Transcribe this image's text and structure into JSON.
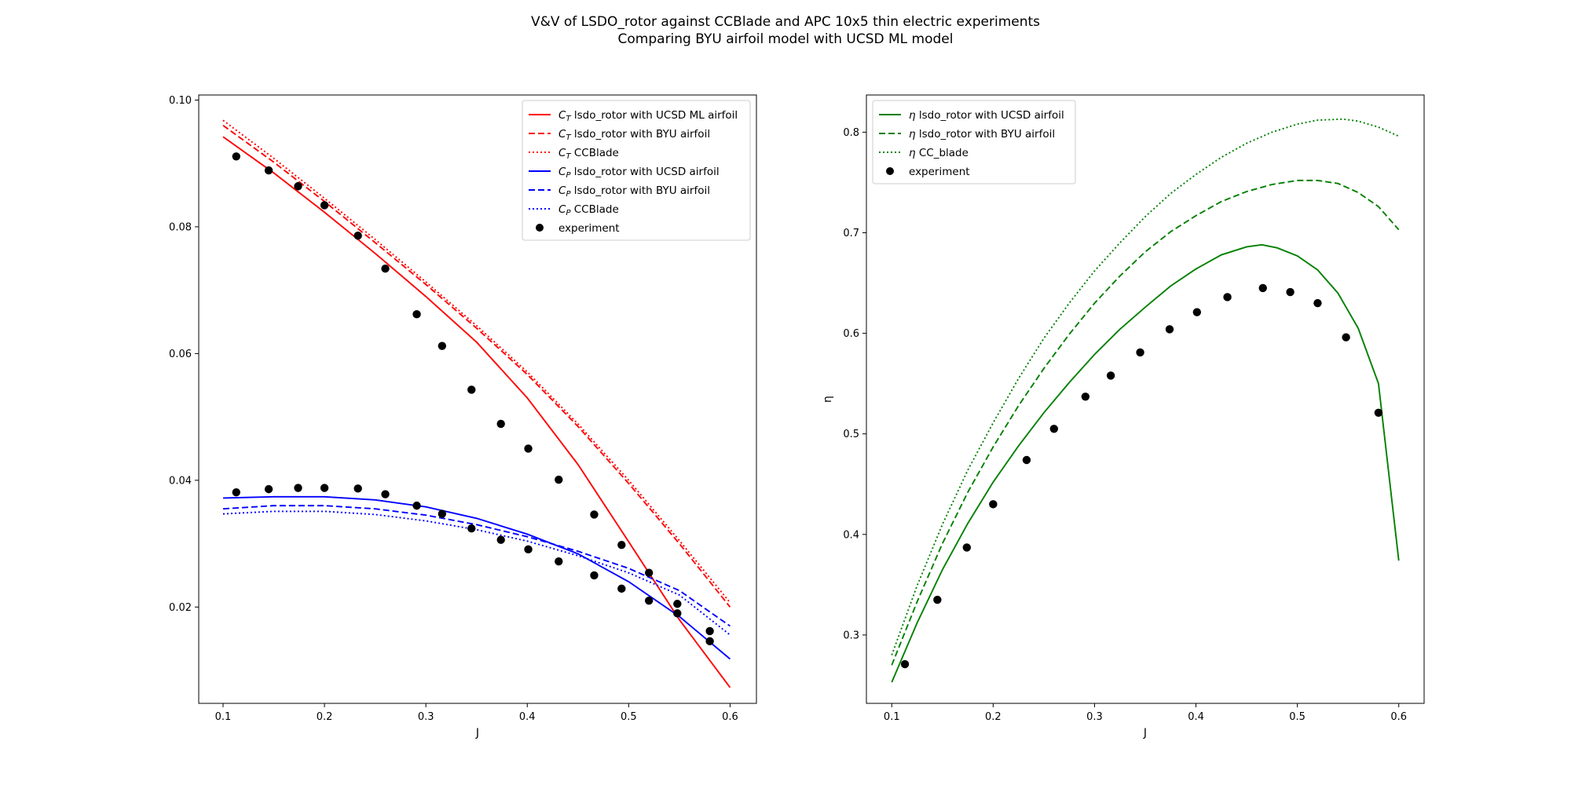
{
  "figure": {
    "title_line1": "V&V of LSDO_rotor against CCBlade and APC 10x5 thin electric experiments",
    "title_line2": "Comparing BYU airfoil model with UCSD ML model"
  },
  "chart_data": [
    {
      "type": "line",
      "xlabel": "J",
      "ylabel": "",
      "xlim": [
        0.076,
        0.626
      ],
      "ylim": [
        0.0048,
        0.1008
      ],
      "xticks": [
        0.1,
        0.2,
        0.3,
        0.4,
        0.5,
        0.6
      ],
      "xtick_labels": [
        "0.1",
        "0.2",
        "0.3",
        "0.4",
        "0.5",
        "0.6"
      ],
      "yticks": [
        0.02,
        0.04,
        0.06,
        0.08,
        0.1
      ],
      "ytick_labels": [
        "0.02",
        "0.04",
        "0.06",
        "0.08",
        "0.10"
      ],
      "grid": false,
      "legend_position": "top-right",
      "series": [
        {
          "sym": "C",
          "sub": "T",
          "text": " lsdo_rotor with UCSD ML airfoil",
          "color": "#ff0000",
          "style": "solid",
          "x": [
            0.1,
            0.15,
            0.2,
            0.25,
            0.3,
            0.35,
            0.4,
            0.45,
            0.5,
            0.55,
            0.6
          ],
          "y": [
            0.0942,
            0.0885,
            0.0823,
            0.0758,
            0.069,
            0.0618,
            0.053,
            0.0425,
            0.0303,
            0.018,
            0.0073
          ]
        },
        {
          "sym": "C",
          "sub": "T",
          "text": " lsdo_rotor with BYU airfoil",
          "color": "#ff0000",
          "style": "dashed",
          "x": [
            0.1,
            0.15,
            0.2,
            0.25,
            0.3,
            0.35,
            0.4,
            0.45,
            0.5,
            0.55,
            0.6
          ],
          "y": [
            0.096,
            0.0902,
            0.084,
            0.0775,
            0.0709,
            0.064,
            0.0567,
            0.0485,
            0.0395,
            0.03,
            0.02
          ]
        },
        {
          "sym": "C",
          "sub": "T",
          "text": " CCBlade",
          "color": "#ff0000",
          "style": "dotted",
          "x": [
            0.1,
            0.15,
            0.2,
            0.25,
            0.3,
            0.35,
            0.4,
            0.45,
            0.5,
            0.55,
            0.6
          ],
          "y": [
            0.0968,
            0.0908,
            0.0845,
            0.078,
            0.0713,
            0.0644,
            0.0571,
            0.0489,
            0.04,
            0.0305,
            0.0207
          ]
        },
        {
          "sym": "C",
          "sub": "P",
          "text": " lsdo_rotor with UCSD airfoil",
          "color": "#0000ff",
          "style": "solid",
          "x": [
            0.1,
            0.15,
            0.2,
            0.25,
            0.3,
            0.35,
            0.4,
            0.45,
            0.5,
            0.55,
            0.6
          ],
          "y": [
            0.0372,
            0.0374,
            0.0374,
            0.0369,
            0.0358,
            0.034,
            0.0315,
            0.0284,
            0.024,
            0.0185,
            0.0118
          ]
        },
        {
          "sym": "C",
          "sub": "P",
          "text": " lsdo_rotor with BYU airfoil",
          "color": "#0000ff",
          "style": "dashed",
          "x": [
            0.1,
            0.15,
            0.2,
            0.25,
            0.3,
            0.35,
            0.4,
            0.45,
            0.5,
            0.55,
            0.6
          ],
          "y": [
            0.0355,
            0.036,
            0.036,
            0.0355,
            0.0345,
            0.033,
            0.0311,
            0.0288,
            0.0261,
            0.0226,
            0.017
          ]
        },
        {
          "sym": "C",
          "sub": "P",
          "text": " CCBlade",
          "color": "#0000ff",
          "style": "dotted",
          "x": [
            0.1,
            0.15,
            0.2,
            0.25,
            0.3,
            0.35,
            0.4,
            0.45,
            0.5,
            0.55,
            0.6
          ],
          "y": [
            0.0347,
            0.0351,
            0.0351,
            0.0346,
            0.0336,
            0.0322,
            0.0304,
            0.0281,
            0.0254,
            0.0219,
            0.0156
          ]
        },
        {
          "sym": "",
          "sub": "",
          "text": "experiment",
          "color": "#000000",
          "style": "markers",
          "x": [
            0.113,
            0.145,
            0.174,
            0.2,
            0.233,
            0.26,
            0.291,
            0.316,
            0.345,
            0.374,
            0.401,
            0.431,
            0.466,
            0.493,
            0.52,
            0.548,
            0.58,
            0.113,
            0.145,
            0.174,
            0.2,
            0.233,
            0.26,
            0.291,
            0.316,
            0.345,
            0.374,
            0.401,
            0.431,
            0.466,
            0.493,
            0.52,
            0.548,
            0.58
          ],
          "y": [
            0.0911,
            0.0889,
            0.0864,
            0.0834,
            0.0786,
            0.0734,
            0.0662,
            0.0612,
            0.0543,
            0.0489,
            0.045,
            0.0401,
            0.0346,
            0.0298,
            0.0254,
            0.0205,
            0.0162,
            0.0381,
            0.0386,
            0.0388,
            0.0388,
            0.0387,
            0.0378,
            0.036,
            0.0347,
            0.0324,
            0.0306,
            0.0291,
            0.0272,
            0.025,
            0.0229,
            0.021,
            0.019,
            0.0146
          ]
        }
      ]
    },
    {
      "type": "line",
      "xlabel": "J",
      "ylabel": "η",
      "xlim": [
        0.075,
        0.625
      ],
      "ylim": [
        0.232,
        0.837
      ],
      "xticks": [
        0.1,
        0.2,
        0.3,
        0.4,
        0.5,
        0.6
      ],
      "xtick_labels": [
        "0.1",
        "0.2",
        "0.3",
        "0.4",
        "0.5",
        "0.6"
      ],
      "yticks": [
        0.3,
        0.4,
        0.5,
        0.6,
        0.7,
        0.8
      ],
      "ytick_labels": [
        "0.3",
        "0.4",
        "0.5",
        "0.6",
        "0.7",
        "0.8"
      ],
      "grid": false,
      "legend_position": "top-left",
      "series": [
        {
          "sym": "η",
          "sub": "",
          "text": " lsdo_rotor with UCSD airfoil",
          "color": "#008000",
          "style": "solid",
          "x": [
            0.1,
            0.125,
            0.15,
            0.175,
            0.2,
            0.225,
            0.25,
            0.275,
            0.3,
            0.325,
            0.35,
            0.375,
            0.4,
            0.425,
            0.45,
            0.465,
            0.48,
            0.5,
            0.52,
            0.54,
            0.56,
            0.58,
            0.6
          ],
          "y": [
            0.253,
            0.312,
            0.365,
            0.411,
            0.452,
            0.488,
            0.521,
            0.551,
            0.579,
            0.604,
            0.626,
            0.647,
            0.664,
            0.678,
            0.686,
            0.688,
            0.685,
            0.677,
            0.663,
            0.64,
            0.605,
            0.55,
            0.374
          ]
        },
        {
          "sym": "η",
          "sub": "",
          "text": " lsdo_rotor with BYU airfoil",
          "color": "#008000",
          "style": "dashed",
          "x": [
            0.1,
            0.125,
            0.15,
            0.175,
            0.2,
            0.225,
            0.25,
            0.275,
            0.3,
            0.325,
            0.35,
            0.375,
            0.4,
            0.425,
            0.45,
            0.475,
            0.5,
            0.52,
            0.54,
            0.56,
            0.58,
            0.6
          ],
          "y": [
            0.27,
            0.333,
            0.391,
            0.442,
            0.487,
            0.528,
            0.565,
            0.599,
            0.63,
            0.657,
            0.681,
            0.701,
            0.717,
            0.731,
            0.741,
            0.748,
            0.752,
            0.752,
            0.749,
            0.74,
            0.726,
            0.703
          ]
        },
        {
          "sym": "η",
          "sub": "",
          "text": " CC_blade",
          "color": "#008000",
          "style": "dotted",
          "x": [
            0.1,
            0.125,
            0.15,
            0.175,
            0.2,
            0.225,
            0.25,
            0.275,
            0.3,
            0.325,
            0.35,
            0.375,
            0.4,
            0.425,
            0.45,
            0.475,
            0.5,
            0.52,
            0.545,
            0.56,
            0.58,
            0.6
          ],
          "y": [
            0.28,
            0.349,
            0.41,
            0.464,
            0.511,
            0.555,
            0.595,
            0.63,
            0.662,
            0.69,
            0.716,
            0.739,
            0.758,
            0.775,
            0.789,
            0.8,
            0.808,
            0.812,
            0.813,
            0.811,
            0.805,
            0.796
          ]
        },
        {
          "sym": "",
          "sub": "",
          "text": "experiment",
          "color": "#000000",
          "style": "markers",
          "x": [
            0.113,
            0.145,
            0.174,
            0.2,
            0.233,
            0.26,
            0.291,
            0.316,
            0.345,
            0.374,
            0.401,
            0.431,
            0.466,
            0.493,
            0.52,
            0.548,
            0.58
          ],
          "y": [
            0.271,
            0.335,
            0.387,
            0.43,
            0.474,
            0.505,
            0.537,
            0.558,
            0.581,
            0.604,
            0.621,
            0.636,
            0.645,
            0.641,
            0.63,
            0.596,
            0.521
          ]
        }
      ]
    }
  ]
}
